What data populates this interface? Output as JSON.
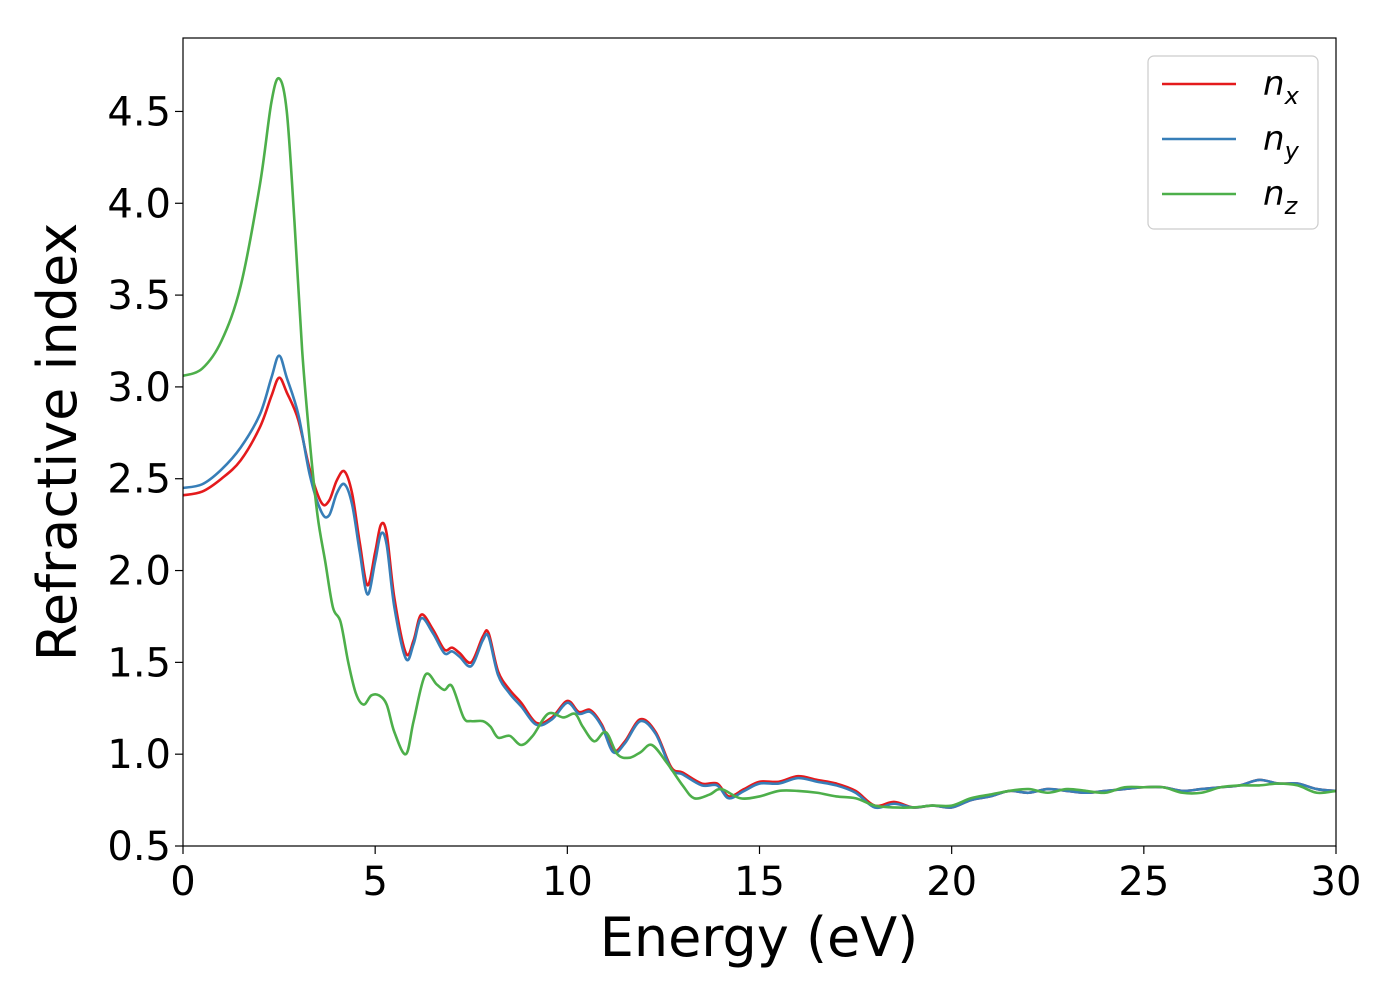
{
  "chart_data": {
    "type": "line",
    "xlabel": "Energy (eV)",
    "ylabel": "Refractive index",
    "xlim": [
      0,
      30
    ],
    "ylim": [
      0.5,
      4.9
    ],
    "xticks": [
      0,
      5,
      10,
      15,
      20,
      25,
      30
    ],
    "xtick_labels": [
      "0",
      "5",
      "10",
      "15",
      "20",
      "25",
      "30"
    ],
    "yticks": [
      0.5,
      1.0,
      1.5,
      2.0,
      2.5,
      3.0,
      3.5,
      4.0,
      4.5
    ],
    "ytick_labels": [
      "0.5",
      "1.0",
      "1.5",
      "2.0",
      "2.5",
      "3.0",
      "3.5",
      "4.0",
      "4.5"
    ],
    "grid": false,
    "legend_position": "top-right",
    "series": [
      {
        "name": "n",
        "subscript": "x",
        "color": "#e41a1c",
        "x": [
          0,
          0.5,
          1.0,
          1.5,
          2.0,
          2.3,
          2.5,
          2.7,
          3.0,
          3.3,
          3.6,
          3.8,
          4.0,
          4.2,
          4.4,
          4.6,
          4.8,
          5.0,
          5.15,
          5.3,
          5.5,
          5.8,
          6.0,
          6.2,
          6.5,
          6.8,
          7.0,
          7.2,
          7.5,
          7.8,
          7.95,
          8.2,
          8.5,
          8.8,
          9.2,
          9.6,
          10.0,
          10.3,
          10.6,
          10.9,
          11.2,
          11.5,
          11.9,
          12.3,
          12.7,
          13.0,
          13.5,
          13.9,
          14.2,
          14.6,
          15.0,
          15.5,
          16.0,
          16.5,
          17.0,
          17.5,
          18.0,
          18.5,
          19.0,
          19.5,
          20.0,
          20.5,
          21.0,
          21.5,
          22.0,
          22.5,
          23.0,
          23.5,
          24.0,
          24.5,
          25.0,
          25.5,
          26.0,
          26.5,
          27.0,
          27.5,
          28.0,
          28.5,
          29.0,
          29.5,
          30.0
        ],
        "y": [
          2.41,
          2.43,
          2.5,
          2.6,
          2.78,
          2.95,
          3.05,
          2.97,
          2.82,
          2.55,
          2.37,
          2.38,
          2.49,
          2.54,
          2.42,
          2.15,
          1.92,
          2.1,
          2.25,
          2.2,
          1.85,
          1.55,
          1.62,
          1.76,
          1.68,
          1.57,
          1.58,
          1.55,
          1.5,
          1.64,
          1.66,
          1.45,
          1.35,
          1.28,
          1.17,
          1.2,
          1.29,
          1.23,
          1.24,
          1.16,
          1.02,
          1.07,
          1.19,
          1.12,
          0.93,
          0.9,
          0.84,
          0.84,
          0.77,
          0.81,
          0.85,
          0.85,
          0.88,
          0.86,
          0.84,
          0.8,
          0.72,
          0.74,
          0.71,
          0.72,
          0.71,
          0.75,
          0.77,
          0.8,
          0.79,
          0.81,
          0.8,
          0.79,
          0.8,
          0.81,
          0.82,
          0.82,
          0.8,
          0.81,
          0.82,
          0.83,
          0.86,
          0.84,
          0.84,
          0.81,
          0.8
        ]
      },
      {
        "name": "n",
        "subscript": "y",
        "color": "#377eb8",
        "x": [
          0,
          0.5,
          1.0,
          1.5,
          2.0,
          2.3,
          2.5,
          2.7,
          3.0,
          3.3,
          3.6,
          3.8,
          4.0,
          4.2,
          4.4,
          4.6,
          4.8,
          5.0,
          5.15,
          5.3,
          5.5,
          5.8,
          6.0,
          6.2,
          6.5,
          6.8,
          7.0,
          7.2,
          7.5,
          7.8,
          7.95,
          8.2,
          8.5,
          8.8,
          9.2,
          9.6,
          10.0,
          10.3,
          10.6,
          10.9,
          11.2,
          11.5,
          11.9,
          12.3,
          12.7,
          13.0,
          13.5,
          13.9,
          14.2,
          14.6,
          15.0,
          15.5,
          16.0,
          16.5,
          17.0,
          17.5,
          18.0,
          18.5,
          19.0,
          19.5,
          20.0,
          20.5,
          21.0,
          21.5,
          22.0,
          22.5,
          23.0,
          23.5,
          24.0,
          24.5,
          25.0,
          25.5,
          26.0,
          26.5,
          27.0,
          27.5,
          28.0,
          28.5,
          29.0,
          29.5,
          30.0
        ],
        "y": [
          2.45,
          2.47,
          2.55,
          2.67,
          2.85,
          3.05,
          3.17,
          3.05,
          2.85,
          2.52,
          2.32,
          2.3,
          2.42,
          2.47,
          2.36,
          2.1,
          1.87,
          2.05,
          2.2,
          2.14,
          1.8,
          1.52,
          1.6,
          1.74,
          1.66,
          1.55,
          1.56,
          1.53,
          1.48,
          1.62,
          1.64,
          1.43,
          1.33,
          1.26,
          1.16,
          1.19,
          1.28,
          1.22,
          1.23,
          1.15,
          1.01,
          1.06,
          1.18,
          1.11,
          0.92,
          0.89,
          0.83,
          0.83,
          0.76,
          0.8,
          0.84,
          0.84,
          0.87,
          0.85,
          0.83,
          0.79,
          0.71,
          0.73,
          0.71,
          0.72,
          0.71,
          0.75,
          0.77,
          0.8,
          0.79,
          0.81,
          0.8,
          0.79,
          0.8,
          0.81,
          0.82,
          0.82,
          0.8,
          0.81,
          0.82,
          0.83,
          0.86,
          0.84,
          0.84,
          0.81,
          0.8
        ]
      },
      {
        "name": "n",
        "subscript": "z",
        "color": "#4daf4a",
        "x": [
          0,
          0.5,
          1.0,
          1.5,
          2.0,
          2.3,
          2.5,
          2.7,
          2.9,
          3.1,
          3.3,
          3.5,
          3.7,
          3.9,
          4.1,
          4.3,
          4.5,
          4.7,
          4.9,
          5.1,
          5.3,
          5.5,
          5.8,
          6.0,
          6.3,
          6.6,
          6.8,
          7.0,
          7.3,
          7.5,
          7.8,
          8.0,
          8.2,
          8.5,
          8.8,
          9.1,
          9.5,
          9.9,
          10.2,
          10.4,
          10.7,
          11.0,
          11.3,
          11.6,
          11.9,
          12.2,
          12.6,
          13.0,
          13.3,
          13.7,
          14.0,
          14.5,
          15.0,
          15.5,
          16.0,
          16.5,
          17.0,
          17.5,
          18.0,
          18.5,
          19.0,
          19.5,
          20.0,
          20.5,
          21.0,
          21.5,
          22.0,
          22.5,
          23.0,
          23.5,
          24.0,
          24.5,
          25.0,
          25.5,
          26.0,
          26.5,
          27.0,
          27.5,
          28.0,
          28.5,
          29.0,
          29.5,
          30.0
        ],
        "y": [
          3.06,
          3.1,
          3.25,
          3.55,
          4.1,
          4.55,
          4.68,
          4.5,
          3.9,
          3.2,
          2.7,
          2.3,
          2.05,
          1.8,
          1.72,
          1.5,
          1.33,
          1.27,
          1.32,
          1.32,
          1.27,
          1.12,
          1.0,
          1.18,
          1.43,
          1.38,
          1.35,
          1.37,
          1.2,
          1.18,
          1.18,
          1.15,
          1.09,
          1.1,
          1.05,
          1.1,
          1.22,
          1.2,
          1.22,
          1.15,
          1.07,
          1.12,
          1.0,
          0.98,
          1.01,
          1.05,
          0.95,
          0.83,
          0.76,
          0.78,
          0.81,
          0.76,
          0.77,
          0.8,
          0.8,
          0.79,
          0.77,
          0.76,
          0.72,
          0.71,
          0.71,
          0.72,
          0.72,
          0.76,
          0.78,
          0.8,
          0.81,
          0.79,
          0.81,
          0.8,
          0.79,
          0.82,
          0.82,
          0.82,
          0.79,
          0.79,
          0.82,
          0.83,
          0.83,
          0.84,
          0.83,
          0.79,
          0.8
        ]
      }
    ]
  }
}
